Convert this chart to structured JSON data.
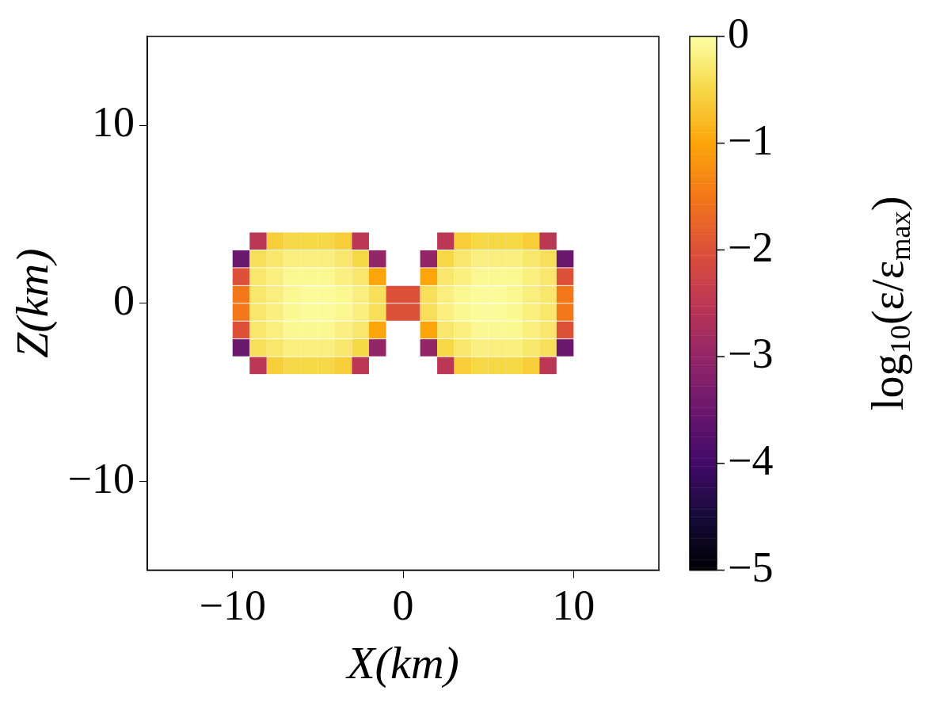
{
  "chart_data": {
    "type": "scatter",
    "marker": "square",
    "xlabel": "X(km)",
    "ylabel": "Z(km)",
    "clabel": "log$_{10}$(ε/ε$_{max}$)",
    "xlim": [
      -15,
      15
    ],
    "ylim": [
      -15,
      15
    ],
    "xticks": [
      {
        "value": -10,
        "label": "−10"
      },
      0,
      10
    ],
    "yticks": [
      {
        "value": -10,
        "label": "−10"
      },
      0,
      10
    ],
    "clim": [
      -5,
      0
    ],
    "cticks": [
      {
        "value": -5,
        "label": "−5"
      },
      {
        "value": -4,
        "label": "−4"
      },
      {
        "value": -3,
        "label": "−3"
      },
      {
        "value": -2,
        "label": "−2"
      },
      {
        "value": -1,
        "label": "−1"
      },
      0
    ],
    "x": [
      -8.5,
      -7.5,
      -6.5,
      -5.5,
      -4.5,
      -3.5,
      -2.5,
      2.5,
      3.5,
      4.5,
      5.5,
      6.5,
      7.5,
      8.5,
      -9.5,
      -8.5,
      -7.5,
      -6.5,
      -5.5,
      -4.5,
      -3.5,
      -2.5,
      -1.5,
      1.5,
      2.5,
      3.5,
      4.5,
      5.5,
      6.5,
      7.5,
      8.5,
      9.5,
      -9.5,
      -8.5,
      -7.5,
      -6.5,
      -5.5,
      -4.5,
      -3.5,
      -2.5,
      -1.5,
      1.5,
      2.5,
      3.5,
      4.5,
      5.5,
      6.5,
      7.5,
      8.5,
      9.5,
      -9.5,
      -8.5,
      -7.5,
      -6.5,
      -5.5,
      -4.5,
      -3.5,
      -2.5,
      -1.5,
      -0.5,
      0.5,
      1.5,
      2.5,
      3.5,
      4.5,
      5.5,
      6.5,
      7.5,
      8.5,
      9.5,
      -9.5,
      -8.5,
      -7.5,
      -6.5,
      -5.5,
      -4.5,
      -3.5,
      -2.5,
      -1.5,
      -0.5,
      0.5,
      1.5,
      2.5,
      3.5,
      4.5,
      5.5,
      6.5,
      7.5,
      8.5,
      9.5,
      -9.5,
      -8.5,
      -7.5,
      -6.5,
      -5.5,
      -4.5,
      -3.5,
      -2.5,
      -1.5,
      1.5,
      2.5,
      3.5,
      4.5,
      5.5,
      6.5,
      7.5,
      8.5,
      9.5,
      -9.5,
      -8.5,
      -7.5,
      -6.5,
      -5.5,
      -4.5,
      -3.5,
      -2.5,
      -1.5,
      1.5,
      2.5,
      3.5,
      4.5,
      5.5,
      6.5,
      7.5,
      8.5,
      9.5,
      -8.5,
      -7.5,
      -6.5,
      -5.5,
      -4.5,
      -3.5,
      -2.5,
      2.5,
      3.5,
      4.5,
      5.5,
      6.5,
      7.5,
      8.5
    ],
    "values": [
      3.5,
      3.5,
      3.5,
      3.5,
      3.5,
      3.5,
      3.5,
      3.5,
      3.5,
      3.5,
      3.5,
      3.5,
      3.5,
      3.5,
      2.5,
      2.5,
      2.5,
      2.5,
      2.5,
      2.5,
      2.5,
      2.5,
      2.5,
      2.5,
      2.5,
      2.5,
      2.5,
      2.5,
      2.5,
      2.5,
      2.5,
      2.5,
      1.5,
      1.5,
      1.5,
      1.5,
      1.5,
      1.5,
      1.5,
      1.5,
      1.5,
      1.5,
      1.5,
      1.5,
      1.5,
      1.5,
      1.5,
      1.5,
      1.5,
      1.5,
      0.5,
      0.5,
      0.5,
      0.5,
      0.5,
      0.5,
      0.5,
      0.5,
      0.5,
      0.5,
      0.5,
      0.5,
      0.5,
      0.5,
      0.5,
      0.5,
      0.5,
      0.5,
      0.5,
      0.5,
      -0.5,
      -0.5,
      -0.5,
      -0.5,
      -0.5,
      -0.5,
      -0.5,
      -0.5,
      -0.5,
      -0.5,
      -0.5,
      -0.5,
      -0.5,
      -0.5,
      -0.5,
      -0.5,
      -0.5,
      -0.5,
      -0.5,
      -0.5,
      -1.5,
      -1.5,
      -1.5,
      -1.5,
      -1.5,
      -1.5,
      -1.5,
      -1.5,
      -1.5,
      -1.5,
      -1.5,
      -1.5,
      -1.5,
      -1.5,
      -1.5,
      -1.5,
      -1.5,
      -1.5,
      -2.5,
      -2.5,
      -2.5,
      -2.5,
      -2.5,
      -2.5,
      -2.5,
      -2.5,
      -2.5,
      -2.5,
      -2.5,
      -2.5,
      -2.5,
      -2.5,
      -2.5,
      -2.5,
      -2.5,
      -2.5,
      -3.5,
      -3.5,
      -3.5,
      -3.5,
      -3.5,
      -3.5,
      -3.5,
      -3.5,
      -3.5,
      -3.5,
      -3.5,
      -3.5,
      -3.5,
      -3.5
    ],
    "cvalues": [
      -2.5,
      -0.6,
      -0.5,
      -0.5,
      -0.5,
      -0.6,
      -2.5,
      -2.5,
      -0.6,
      -0.5,
      -0.5,
      -0.5,
      -0.6,
      -2.5,
      -3.5,
      -0.4,
      -0.3,
      -0.2,
      -0.2,
      -0.2,
      -0.3,
      -0.5,
      -3,
      -3,
      -0.5,
      -0.3,
      -0.2,
      -0.2,
      -0.2,
      -0.3,
      -0.4,
      -3.5,
      -2,
      -0.3,
      -0.2,
      -0.1,
      -0.1,
      -0.1,
      -0.2,
      -0.3,
      -1,
      -1,
      -0.3,
      -0.2,
      -0.1,
      -0.1,
      -0.1,
      -0.2,
      -0.3,
      -2,
      -1.5,
      -0.3,
      -0.2,
      -0.1,
      -0.05,
      -0.05,
      -0.1,
      -0.2,
      -0.4,
      -2,
      -2,
      -0.4,
      -0.2,
      -0.1,
      -0.05,
      -0.05,
      -0.1,
      -0.2,
      -0.3,
      -1.5,
      -1.5,
      -0.3,
      -0.2,
      -0.1,
      -0.05,
      -0.05,
      -0.1,
      -0.2,
      -0.4,
      -2,
      -2,
      -0.4,
      -0.2,
      -0.1,
      -0.05,
      -0.05,
      -0.1,
      -0.2,
      -0.3,
      -1.5,
      -2,
      -0.3,
      -0.2,
      -0.1,
      -0.1,
      -0.1,
      -0.2,
      -0.3,
      -1,
      -1,
      -0.3,
      -0.2,
      -0.1,
      -0.1,
      -0.1,
      -0.2,
      -0.3,
      -2,
      -3.5,
      -0.4,
      -0.3,
      -0.2,
      -0.2,
      -0.2,
      -0.3,
      -0.5,
      -3,
      -3,
      -0.5,
      -0.3,
      -0.2,
      -0.2,
      -0.2,
      -0.3,
      -0.4,
      -3.5,
      -2.5,
      -0.6,
      -0.5,
      -0.5,
      -0.5,
      -0.6,
      -2.5,
      -2.5,
      -0.6,
      -0.5,
      -0.5,
      -0.5,
      -0.6,
      -2.5
    ]
  }
}
